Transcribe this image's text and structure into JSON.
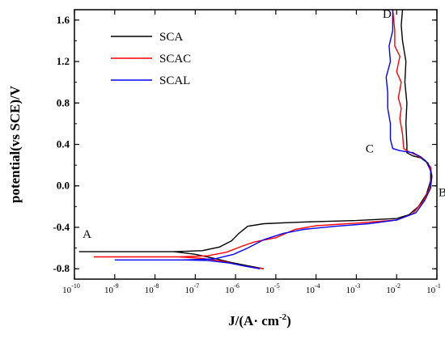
{
  "chart_data": {
    "type": "line",
    "xlabel_main": "J/(A·  cm",
    "xlabel_exp": "-2",
    "xlabel_close": ")",
    "ylabel": "potential(vs SCE)/V",
    "x_scale": "log",
    "xlim": [
      1e-10,
      0.1
    ],
    "ylim": [
      -0.9,
      1.7
    ],
    "x_ticks": [
      {
        "v": 1e-10,
        "base": "10",
        "exp": "-10"
      },
      {
        "v": 1e-09,
        "base": "10",
        "exp": "-9"
      },
      {
        "v": 1e-08,
        "base": "10",
        "exp": "-8"
      },
      {
        "v": 1e-07,
        "base": "10",
        "exp": "-7"
      },
      {
        "v": 1e-06,
        "base": "10",
        "exp": "-6"
      },
      {
        "v": 1e-05,
        "base": "10",
        "exp": "-5"
      },
      {
        "v": 0.0001,
        "base": "10",
        "exp": "-4"
      },
      {
        "v": 0.001,
        "base": "10",
        "exp": "-3"
      },
      {
        "v": 0.01,
        "base": "10",
        "exp": "-2"
      },
      {
        "v": 0.1,
        "base": "10",
        "exp": "-1"
      }
    ],
    "y_ticks": [
      {
        "v": 1.6,
        "label": "1.6"
      },
      {
        "v": 1.2,
        "label": "1.2"
      },
      {
        "v": 0.8,
        "label": "0.8"
      },
      {
        "v": 0.4,
        "label": "0.4"
      },
      {
        "v": 0.0,
        "label": "0.0"
      },
      {
        "v": -0.4,
        "label": "-0.4"
      },
      {
        "v": -0.8,
        "label": "-0.8"
      }
    ],
    "grid": false,
    "legend_position": "top-left",
    "annotations": [
      {
        "text": "A",
        "x": 1.6e-10,
        "y": -0.5
      },
      {
        "text": "B",
        "x": 0.11,
        "y": -0.1
      },
      {
        "text": "C",
        "x": 0.0017,
        "y": 0.32
      },
      {
        "text": "D",
        "x": 0.0045,
        "y": 1.62
      }
    ],
    "series": [
      {
        "name": "SCA",
        "color": "#000000",
        "points": [
          [
            1.3e-10,
            -0.635
          ],
          [
            3e-08,
            -0.635
          ],
          [
            1.5e-07,
            -0.625
          ],
          [
            4e-07,
            -0.59
          ],
          [
            8e-07,
            -0.53
          ],
          [
            1.2e-06,
            -0.46
          ],
          [
            2e-06,
            -0.39
          ],
          [
            5e-06,
            -0.365
          ],
          [
            2e-05,
            -0.355
          ],
          [
            0.0001,
            -0.345
          ],
          [
            0.001,
            -0.335
          ],
          [
            0.01,
            -0.315
          ],
          [
            0.02,
            -0.28
          ],
          [
            0.035,
            -0.2
          ],
          [
            0.055,
            -0.08
          ],
          [
            0.07,
            0.05
          ],
          [
            0.07,
            0.15
          ],
          [
            0.055,
            0.23
          ],
          [
            0.04,
            0.27
          ],
          [
            0.025,
            0.29
          ],
          [
            0.018,
            0.32
          ],
          [
            0.018,
            0.4
          ],
          [
            0.017,
            0.6
          ],
          [
            0.018,
            0.8
          ],
          [
            0.016,
            1.0
          ],
          [
            0.017,
            1.2
          ],
          [
            0.014,
            1.4
          ],
          [
            0.013,
            1.55
          ],
          [
            0.014,
            1.7
          ]
        ],
        "cathodic": [
          [
            3e-08,
            -0.635
          ],
          [
            1e-07,
            -0.66
          ],
          [
            3e-07,
            -0.7
          ],
          [
            8e-07,
            -0.74
          ],
          [
            2e-06,
            -0.77
          ],
          [
            5e-06,
            -0.8
          ]
        ]
      },
      {
        "name": "SCAC",
        "color": "#ff0000",
        "points": [
          [
            3e-10,
            -0.685
          ],
          [
            4e-08,
            -0.685
          ],
          [
            2e-07,
            -0.675
          ],
          [
            6e-07,
            -0.64
          ],
          [
            1.5e-06,
            -0.58
          ],
          [
            3e-06,
            -0.54
          ],
          [
            1e-05,
            -0.5
          ],
          [
            3e-05,
            -0.42
          ],
          [
            0.0001,
            -0.385
          ],
          [
            0.001,
            -0.36
          ],
          [
            0.01,
            -0.33
          ],
          [
            0.025,
            -0.27
          ],
          [
            0.045,
            -0.15
          ],
          [
            0.065,
            -0.03
          ],
          [
            0.075,
            0.08
          ],
          [
            0.07,
            0.18
          ],
          [
            0.05,
            0.25
          ],
          [
            0.03,
            0.3
          ],
          [
            0.02,
            0.33
          ],
          [
            0.015,
            0.36
          ],
          [
            0.014,
            0.5
          ],
          [
            0.012,
            0.65
          ],
          [
            0.013,
            0.75
          ],
          [
            0.011,
            0.85
          ],
          [
            0.013,
            1.0
          ],
          [
            0.01,
            1.1
          ],
          [
            0.012,
            1.25
          ],
          [
            0.009,
            1.35
          ],
          [
            0.009,
            1.5
          ],
          [
            0.008,
            1.7
          ]
        ],
        "cathodic": [
          [
            4e-08,
            -0.685
          ],
          [
            1.5e-07,
            -0.7
          ],
          [
            5e-07,
            -0.73
          ],
          [
            1.5e-06,
            -0.77
          ],
          [
            3e-06,
            -0.79
          ],
          [
            5e-06,
            -0.8
          ]
        ]
      },
      {
        "name": "SCAL",
        "color": "#0000ff",
        "points": [
          [
            1e-09,
            -0.715
          ],
          [
            5e-08,
            -0.715
          ],
          [
            3e-07,
            -0.705
          ],
          [
            9e-07,
            -0.66
          ],
          [
            2e-06,
            -0.6
          ],
          [
            5e-06,
            -0.52
          ],
          [
            1.5e-05,
            -0.46
          ],
          [
            5e-05,
            -0.42
          ],
          [
            0.0003,
            -0.39
          ],
          [
            0.002,
            -0.365
          ],
          [
            0.01,
            -0.33
          ],
          [
            0.03,
            -0.26
          ],
          [
            0.05,
            -0.14
          ],
          [
            0.07,
            -0.02
          ],
          [
            0.075,
            0.1
          ],
          [
            0.06,
            0.22
          ],
          [
            0.04,
            0.28
          ],
          [
            0.025,
            0.32
          ],
          [
            0.012,
            0.34
          ],
          [
            0.008,
            0.36
          ],
          [
            0.007,
            0.45
          ],
          [
            0.007,
            0.6
          ],
          [
            0.006,
            0.75
          ],
          [
            0.006,
            0.9
          ],
          [
            0.0055,
            1.05
          ],
          [
            0.007,
            1.2
          ],
          [
            0.0065,
            1.35
          ],
          [
            0.008,
            1.5
          ],
          [
            0.008,
            1.7
          ]
        ],
        "cathodic": [
          [
            5e-08,
            -0.715
          ],
          [
            2e-07,
            -0.72
          ],
          [
            7e-07,
            -0.745
          ],
          [
            2e-06,
            -0.78
          ],
          [
            4e-06,
            -0.8
          ]
        ]
      }
    ]
  }
}
